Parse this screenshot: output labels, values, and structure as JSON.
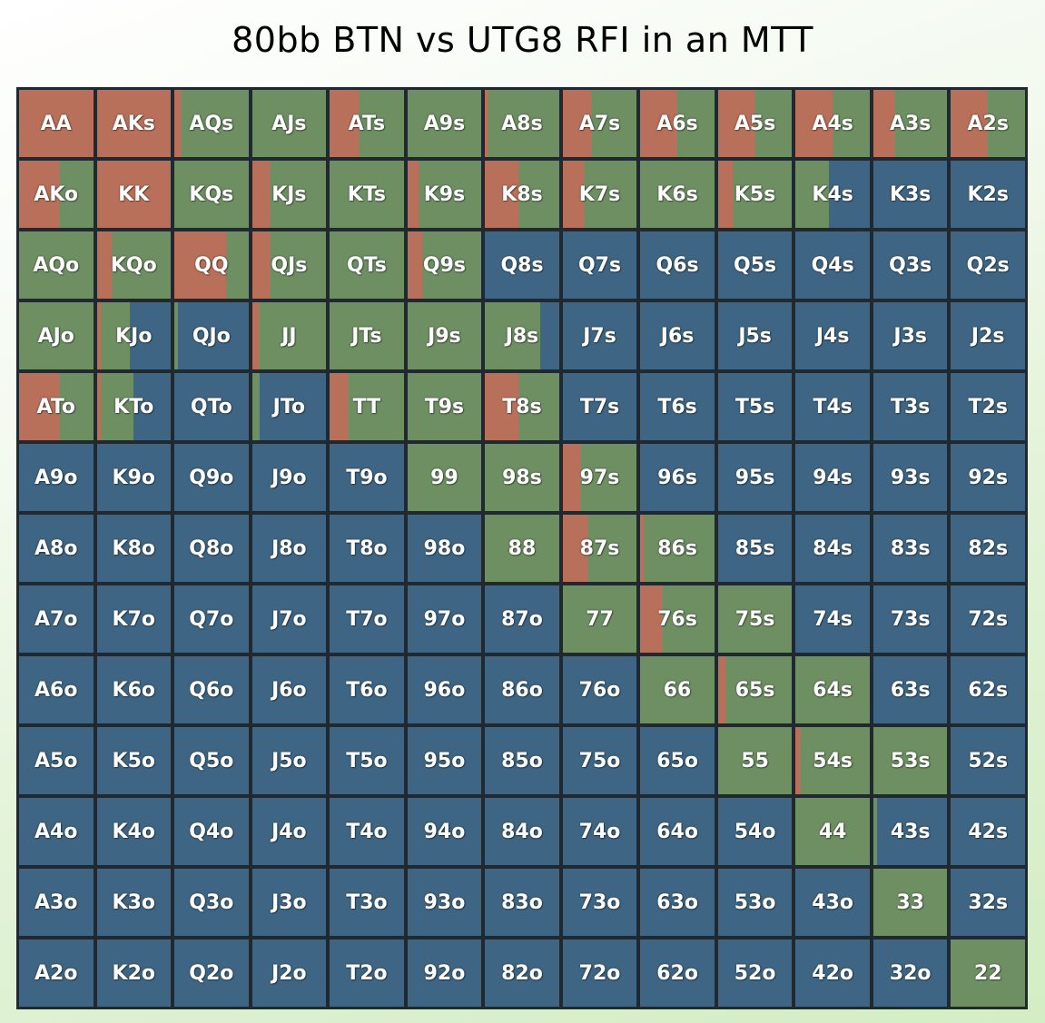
{
  "title": "80bb BTN vs UTG8 RFI in an MTT",
  "colors": {
    "raise": "#b8705a",
    "call": "#6d8f62",
    "fold": "#3e6684"
  },
  "hands": [
    [
      "AA",
      "AKs",
      "AQs",
      "AJs",
      "ATs",
      "A9s",
      "A8s",
      "A7s",
      "A6s",
      "A5s",
      "A4s",
      "A3s",
      "A2s"
    ],
    [
      "AKo",
      "KK",
      "KQs",
      "KJs",
      "KTs",
      "K9s",
      "K8s",
      "K7s",
      "K6s",
      "K5s",
      "K4s",
      "K3s",
      "K2s"
    ],
    [
      "AQo",
      "KQo",
      "QQ",
      "QJs",
      "QTs",
      "Q9s",
      "Q8s",
      "Q7s",
      "Q6s",
      "Q5s",
      "Q4s",
      "Q3s",
      "Q2s"
    ],
    [
      "AJo",
      "KJo",
      "QJo",
      "JJ",
      "JTs",
      "J9s",
      "J8s",
      "J7s",
      "J6s",
      "J5s",
      "J4s",
      "J3s",
      "J2s"
    ],
    [
      "ATo",
      "KTo",
      "QTo",
      "JTo",
      "TT",
      "T9s",
      "T8s",
      "T7s",
      "T6s",
      "T5s",
      "T4s",
      "T3s",
      "T2s"
    ],
    [
      "A9o",
      "K9o",
      "Q9o",
      "J9o",
      "T9o",
      "99",
      "98s",
      "97s",
      "96s",
      "95s",
      "94s",
      "93s",
      "92s"
    ],
    [
      "A8o",
      "K8o",
      "Q8o",
      "J8o",
      "T8o",
      "98o",
      "88",
      "87s",
      "86s",
      "85s",
      "84s",
      "83s",
      "82s"
    ],
    [
      "A7o",
      "K7o",
      "Q7o",
      "J7o",
      "T7o",
      "97o",
      "87o",
      "77",
      "76s",
      "75s",
      "74s",
      "73s",
      "72s"
    ],
    [
      "A6o",
      "K6o",
      "Q6o",
      "J6o",
      "T6o",
      "96o",
      "86o",
      "76o",
      "66",
      "65s",
      "64s",
      "63s",
      "62s"
    ],
    [
      "A5o",
      "K5o",
      "Q5o",
      "J5o",
      "T5o",
      "95o",
      "85o",
      "75o",
      "65o",
      "55",
      "54s",
      "53s",
      "52s"
    ],
    [
      "A4o",
      "K4o",
      "Q4o",
      "J4o",
      "T4o",
      "94o",
      "84o",
      "74o",
      "64o",
      "54o",
      "44",
      "43s",
      "42s"
    ],
    [
      "A3o",
      "K3o",
      "Q3o",
      "J3o",
      "T3o",
      "93o",
      "83o",
      "73o",
      "63o",
      "53o",
      "43o",
      "33",
      "32s"
    ],
    [
      "A2o",
      "K2o",
      "Q2o",
      "J2o",
      "T2o",
      "92o",
      "82o",
      "72o",
      "62o",
      "52o",
      "42o",
      "32o",
      "22"
    ]
  ],
  "frequencies": [
    [
      [
        1,
        0,
        0
      ],
      [
        1,
        0,
        0
      ],
      [
        0.1,
        0.9,
        0
      ],
      [
        0,
        1,
        0
      ],
      [
        0.4,
        0.6,
        0
      ],
      [
        0,
        1,
        0
      ],
      [
        0.05,
        0.95,
        0
      ],
      [
        0.4,
        0.6,
        0
      ],
      [
        0.5,
        0.5,
        0
      ],
      [
        0.5,
        0.5,
        0
      ],
      [
        0.5,
        0.5,
        0
      ],
      [
        0.3,
        0.7,
        0
      ],
      [
        0.5,
        0.5,
        0
      ]
    ],
    [
      [
        0.55,
        0.45,
        0
      ],
      [
        1,
        0,
        0
      ],
      [
        0,
        1,
        0
      ],
      [
        0.25,
        0.75,
        0
      ],
      [
        0,
        1,
        0
      ],
      [
        0.15,
        0.85,
        0
      ],
      [
        0.45,
        0.55,
        0
      ],
      [
        0.3,
        0.7,
        0
      ],
      [
        0,
        1,
        0
      ],
      [
        0.2,
        0.8,
        0
      ],
      [
        0,
        0.45,
        0.55
      ],
      [
        0,
        0,
        1
      ],
      [
        0,
        0,
        1
      ]
    ],
    [
      [
        0,
        1,
        0
      ],
      [
        0.2,
        0.8,
        0
      ],
      [
        0.7,
        0.3,
        0
      ],
      [
        0.25,
        0.75,
        0
      ],
      [
        0,
        1,
        0
      ],
      [
        0.2,
        0.8,
        0
      ],
      [
        0,
        0,
        1
      ],
      [
        0,
        0,
        1
      ],
      [
        0,
        0,
        1
      ],
      [
        0,
        0,
        1
      ],
      [
        0,
        0,
        1
      ],
      [
        0,
        0,
        1
      ],
      [
        0,
        0,
        1
      ]
    ],
    [
      [
        0,
        1,
        0
      ],
      [
        0.05,
        0.4,
        0.55
      ],
      [
        0,
        0.05,
        0.95
      ],
      [
        0.1,
        0.9,
        0
      ],
      [
        0,
        1,
        0
      ],
      [
        0,
        1,
        0
      ],
      [
        0,
        0.75,
        0.25
      ],
      [
        0,
        0,
        1
      ],
      [
        0,
        0,
        1
      ],
      [
        0,
        0,
        1
      ],
      [
        0,
        0,
        1
      ],
      [
        0,
        0,
        1
      ],
      [
        0,
        0,
        1
      ]
    ],
    [
      [
        0.55,
        0.45,
        0
      ],
      [
        0.05,
        0.45,
        0.5
      ],
      [
        0,
        0,
        1
      ],
      [
        0,
        0.1,
        0.9
      ],
      [
        0.25,
        0.75,
        0
      ],
      [
        0,
        1,
        0
      ],
      [
        0.45,
        0.55,
        0
      ],
      [
        0,
        0,
        1
      ],
      [
        0,
        0,
        1
      ],
      [
        0,
        0,
        1
      ],
      [
        0,
        0,
        1
      ],
      [
        0,
        0,
        1
      ],
      [
        0,
        0,
        1
      ]
    ],
    [
      [
        0,
        0,
        1
      ],
      [
        0,
        0,
        1
      ],
      [
        0,
        0,
        1
      ],
      [
        0,
        0,
        1
      ],
      [
        0,
        0,
        1
      ],
      [
        0,
        1,
        0
      ],
      [
        0,
        1,
        0
      ],
      [
        0.25,
        0.75,
        0
      ],
      [
        0,
        0,
        1
      ],
      [
        0,
        0,
        1
      ],
      [
        0,
        0,
        1
      ],
      [
        0,
        0,
        1
      ],
      [
        0,
        0,
        1
      ]
    ],
    [
      [
        0,
        0,
        1
      ],
      [
        0,
        0,
        1
      ],
      [
        0,
        0,
        1
      ],
      [
        0,
        0,
        1
      ],
      [
        0,
        0,
        1
      ],
      [
        0,
        0,
        1
      ],
      [
        0,
        1,
        0
      ],
      [
        0.35,
        0.65,
        0
      ],
      [
        0.05,
        0.95,
        0
      ],
      [
        0,
        0,
        1
      ],
      [
        0,
        0,
        1
      ],
      [
        0,
        0,
        1
      ],
      [
        0,
        0,
        1
      ]
    ],
    [
      [
        0,
        0,
        1
      ],
      [
        0,
        0,
        1
      ],
      [
        0,
        0,
        1
      ],
      [
        0,
        0,
        1
      ],
      [
        0,
        0,
        1
      ],
      [
        0,
        0,
        1
      ],
      [
        0,
        0,
        1
      ],
      [
        0,
        1,
        0
      ],
      [
        0.3,
        0.7,
        0
      ],
      [
        0,
        1,
        0
      ],
      [
        0,
        0,
        1
      ],
      [
        0,
        0,
        1
      ],
      [
        0,
        0,
        1
      ]
    ],
    [
      [
        0,
        0,
        1
      ],
      [
        0,
        0,
        1
      ],
      [
        0,
        0,
        1
      ],
      [
        0,
        0,
        1
      ],
      [
        0,
        0,
        1
      ],
      [
        0,
        0,
        1
      ],
      [
        0,
        0,
        1
      ],
      [
        0,
        0,
        1
      ],
      [
        0,
        1,
        0
      ],
      [
        0.1,
        0.9,
        0
      ],
      [
        0,
        1,
        0
      ],
      [
        0,
        0,
        1
      ],
      [
        0,
        0,
        1
      ]
    ],
    [
      [
        0,
        0,
        1
      ],
      [
        0,
        0,
        1
      ],
      [
        0,
        0,
        1
      ],
      [
        0,
        0,
        1
      ],
      [
        0,
        0,
        1
      ],
      [
        0,
        0,
        1
      ],
      [
        0,
        0,
        1
      ],
      [
        0,
        0,
        1
      ],
      [
        0,
        0,
        1
      ],
      [
        0,
        1,
        0
      ],
      [
        0.07,
        0.93,
        0
      ],
      [
        0,
        1,
        0
      ],
      [
        0,
        0,
        1
      ]
    ],
    [
      [
        0,
        0,
        1
      ],
      [
        0,
        0,
        1
      ],
      [
        0,
        0,
        1
      ],
      [
        0,
        0,
        1
      ],
      [
        0,
        0,
        1
      ],
      [
        0,
        0,
        1
      ],
      [
        0,
        0,
        1
      ],
      [
        0,
        0,
        1
      ],
      [
        0,
        0,
        1
      ],
      [
        0,
        0,
        1
      ],
      [
        0,
        1,
        0
      ],
      [
        0,
        0.05,
        0.95
      ],
      [
        0,
        0,
        1
      ]
    ],
    [
      [
        0,
        0,
        1
      ],
      [
        0,
        0,
        1
      ],
      [
        0,
        0,
        1
      ],
      [
        0,
        0,
        1
      ],
      [
        0,
        0,
        1
      ],
      [
        0,
        0,
        1
      ],
      [
        0,
        0,
        1
      ],
      [
        0,
        0,
        1
      ],
      [
        0,
        0,
        1
      ],
      [
        0,
        0,
        1
      ],
      [
        0,
        0,
        1
      ],
      [
        0,
        1,
        0
      ],
      [
        0,
        0,
        1
      ]
    ],
    [
      [
        0,
        0,
        1
      ],
      [
        0,
        0,
        1
      ],
      [
        0,
        0,
        1
      ],
      [
        0,
        0,
        1
      ],
      [
        0,
        0,
        1
      ],
      [
        0,
        0,
        1
      ],
      [
        0,
        0,
        1
      ],
      [
        0,
        0,
        1
      ],
      [
        0,
        0,
        1
      ],
      [
        0,
        0,
        1
      ],
      [
        0,
        0,
        1
      ],
      [
        0,
        0,
        1
      ],
      [
        0,
        1,
        0
      ]
    ]
  ]
}
